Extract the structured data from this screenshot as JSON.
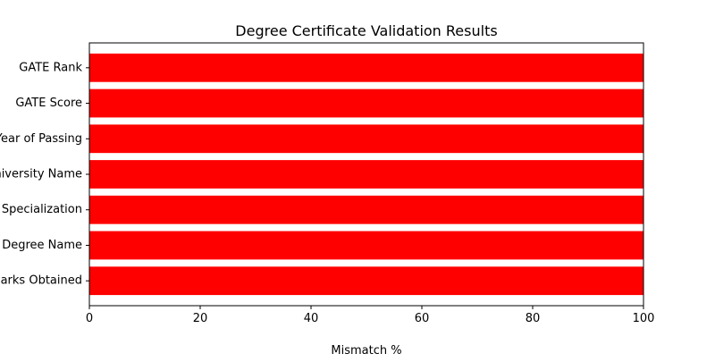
{
  "chart_data": {
    "type": "bar",
    "orientation": "horizontal",
    "title": "Degree Certificate Validation Results",
    "xlabel": "Mismatch %",
    "ylabel": "",
    "xlim": [
      0,
      100
    ],
    "xticks": [
      0,
      20,
      40,
      60,
      80,
      100
    ],
    "categories": [
      "Marks Obtained",
      "Degree Name",
      "Specialization",
      "University Name",
      "Year of Passing",
      "GATE Score",
      "GATE Rank"
    ],
    "values": [
      100,
      100,
      100,
      100,
      100,
      100,
      100
    ],
    "bar_color": "#ff0000",
    "grid": false,
    "legend": "none"
  }
}
